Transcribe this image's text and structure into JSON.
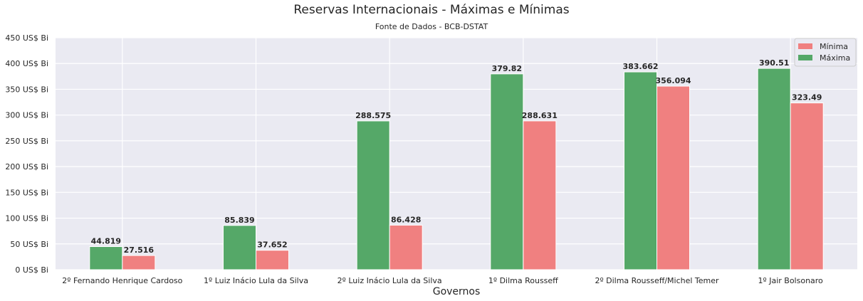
{
  "chart_data": {
    "type": "bar",
    "title": "Reservas Internacionais - Máximas e Mínimas",
    "subtitle": "Fonte de Dados - BCB-DSTAT",
    "xlabel": "Governos",
    "ylabel": "",
    "ylim": [
      0,
      450
    ],
    "yticks": [
      "0 US$ Bi",
      "50 US$ Bi",
      "100 US$ Bi",
      "150 US$ Bi",
      "200 US$ Bi",
      "250 US$ Bi",
      "300 US$ Bi",
      "350 US$ Bi",
      "400 US$ Bi",
      "450 US$ Bi"
    ],
    "categories": [
      "2º Fernando Henrique Cardoso",
      "1º Luiz Inácio Lula da Silva",
      "2º Luiz Inácio Lula da Silva",
      "1º Dilma Rousseff",
      "2º Dilma Rousseff/Michel Temer",
      "1º Jair Bolsonaro"
    ],
    "series": [
      {
        "name": "Máxima",
        "color": "#55a868",
        "values": [
          44.819,
          85.839,
          288.575,
          379.82,
          383.662,
          390.51
        ],
        "labels": [
          "44.819",
          "85.839",
          "288.575",
          "379.82",
          "383.662",
          "390.51"
        ]
      },
      {
        "name": "Mínima",
        "color": "#f08080",
        "values": [
          27.516,
          37.652,
          86.428,
          288.631,
          356.094,
          323.49
        ],
        "labels": [
          "27.516",
          "37.652",
          "86.428",
          "288.631",
          "356.094",
          "323.49"
        ]
      }
    ],
    "legend_order": [
      "Mínima",
      "Máxima"
    ],
    "legend_position": "top-right",
    "grid": true,
    "background": "#eaeaf2"
  }
}
